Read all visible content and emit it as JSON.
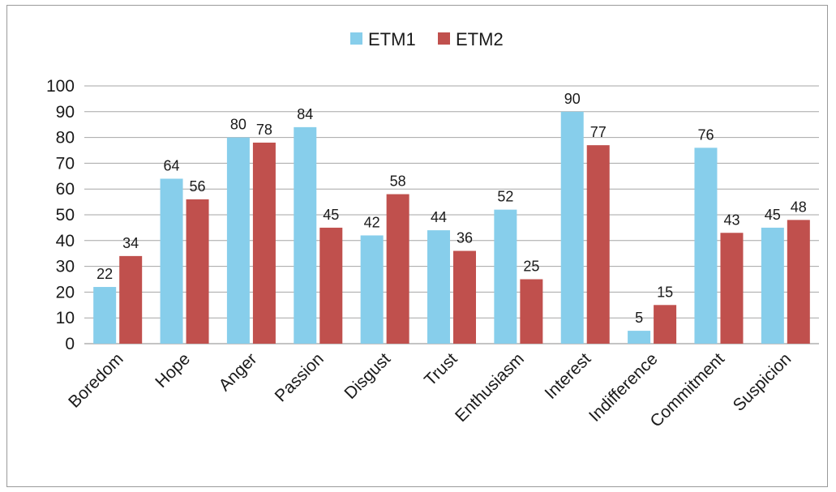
{
  "chart_data": {
    "type": "bar",
    "categories": [
      "Boredom",
      "Hope",
      "Anger",
      "Passion",
      "Disgust",
      "Trust",
      "Enthusiasm",
      "Interest",
      "Indifference",
      "Commitment",
      "Suspicion"
    ],
    "series": [
      {
        "name": "ETM1",
        "color": "#87ceeb",
        "values": [
          22,
          64,
          80,
          84,
          42,
          44,
          52,
          90,
          5,
          76,
          45
        ]
      },
      {
        "name": "ETM2",
        "color": "#c0504d",
        "values": [
          34,
          56,
          78,
          45,
          58,
          36,
          25,
          77,
          15,
          43,
          48
        ]
      }
    ],
    "yticks": [
      0,
      10,
      20,
      30,
      40,
      50,
      60,
      70,
      80,
      90,
      100
    ],
    "ylim": [
      0,
      100
    ],
    "grid": true,
    "legend_position": "top-center",
    "data_labels": true
  }
}
